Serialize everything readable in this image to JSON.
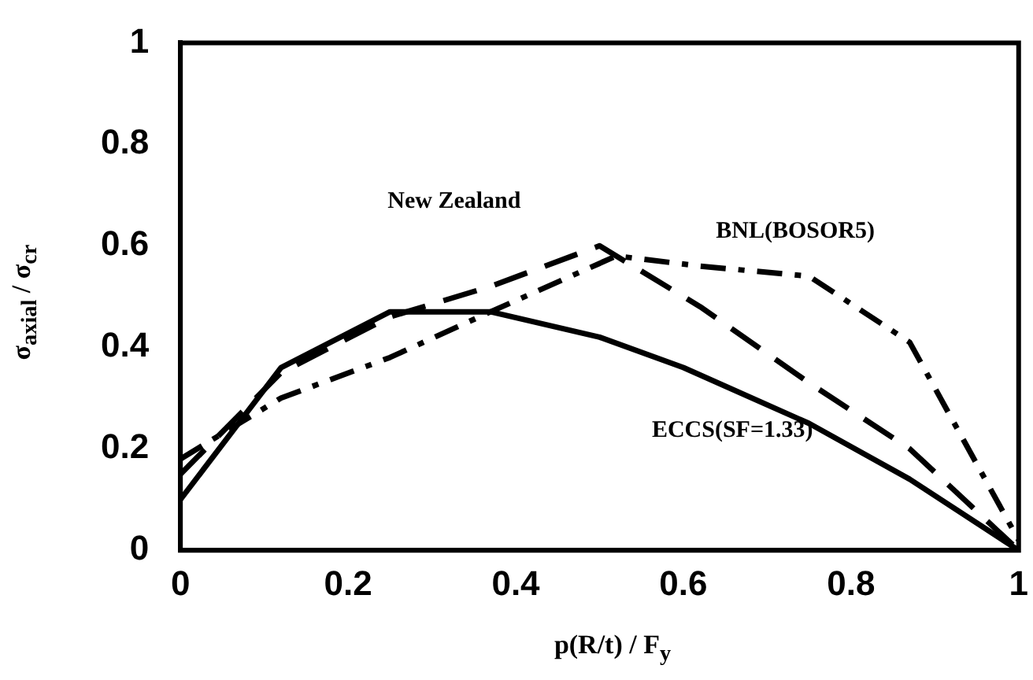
{
  "chart_data": {
    "type": "line",
    "xlabel": "p(R/t) / F$_{y}$",
    "ylabel": "σ$_{axial}$ / σ$_{cr}$",
    "xlim": [
      0,
      1
    ],
    "xticks": [
      0,
      0.2,
      0.4,
      0.6,
      0.8,
      1
    ],
    "ylim": [
      0,
      1
    ],
    "yticks": [
      0,
      0.2,
      0.4,
      0.6,
      0.8,
      1
    ],
    "grid": false,
    "legend": false,
    "marker": "none",
    "series": [
      {
        "name": "ECCS(SF=1.33)",
        "color": "#000000",
        "line_style": "solid",
        "x": [
          0,
          0.12,
          0.25,
          0.37,
          0.5,
          0.6,
          0.75,
          0.87,
          1
        ],
        "values": [
          0.1,
          0.36,
          0.47,
          0.47,
          0.42,
          0.36,
          0.25,
          0.14,
          0
        ]
      },
      {
        "name": "New Zealand",
        "color": "#000000",
        "line_style": "dashed",
        "x": [
          0,
          0.12,
          0.25,
          0.37,
          0.5,
          0.62,
          0.75,
          0.87,
          1
        ],
        "values": [
          0.15,
          0.35,
          0.46,
          0.52,
          0.6,
          0.48,
          0.33,
          0.2,
          0
        ]
      },
      {
        "name": "BNL(BOSOR5)",
        "color": "#000000",
        "line_style": "dashdot",
        "x": [
          0,
          0.12,
          0.25,
          0.37,
          0.52,
          0.62,
          0.75,
          0.87,
          1
        ],
        "values": [
          0.18,
          0.3,
          0.38,
          0.47,
          0.58,
          0.56,
          0.54,
          0.41,
          0.02
        ]
      }
    ]
  }
}
